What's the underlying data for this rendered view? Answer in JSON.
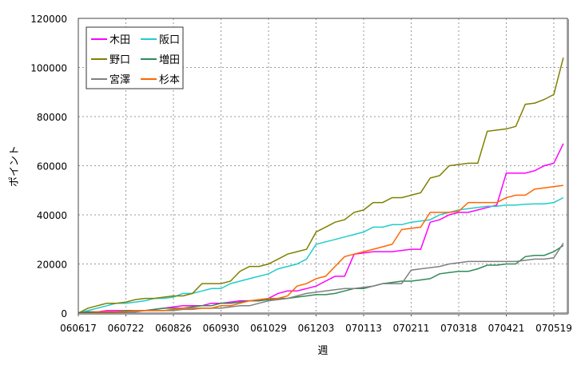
{
  "chart_data": {
    "type": "line",
    "title": "",
    "xlabel": "週",
    "ylabel": "ポイント",
    "ylim": [
      0,
      120000
    ],
    "yticks": [
      0,
      20000,
      40000,
      60000,
      80000,
      100000,
      120000
    ],
    "x_tick_labels": [
      "060617",
      "060722",
      "060826",
      "060930",
      "061029",
      "061203",
      "070113",
      "070211",
      "070318",
      "070421",
      "070519"
    ],
    "x_tick_every": 5,
    "grid": true,
    "legend_position": "top-left",
    "series": [
      {
        "name": "木田",
        "color": "#ff00ff",
        "values": [
          0,
          500,
          500,
          1000,
          1000,
          1000,
          1000,
          1000,
          1500,
          2000,
          2500,
          3000,
          3000,
          3000,
          4000,
          4000,
          4500,
          5000,
          5000,
          5000,
          6000,
          8000,
          9000,
          9000,
          10000,
          11000,
          13000,
          15000,
          15000,
          24000,
          24500,
          25000,
          25000,
          25000,
          25500,
          26000,
          26000,
          37000,
          38000,
          40000,
          41000,
          41000,
          42000,
          43000,
          44000,
          57000,
          57000,
          57000,
          58000,
          60000,
          61000,
          69000
        ]
      },
      {
        "name": "阪口",
        "color": "#22cccc",
        "values": [
          0,
          1000,
          2000,
          3000,
          4000,
          4000,
          4500,
          5000,
          6000,
          6000,
          6500,
          8000,
          8000,
          9000,
          10000,
          10000,
          12000,
          13000,
          14000,
          15000,
          16000,
          18000,
          19000,
          20000,
          22000,
          28000,
          29000,
          30000,
          31000,
          32000,
          33000,
          35000,
          35000,
          36000,
          36000,
          37000,
          37500,
          38000,
          40000,
          41000,
          42000,
          42500,
          43000,
          43500,
          43500,
          44000,
          44000,
          44300,
          44500,
          44500,
          45000,
          47000
        ]
      },
      {
        "name": "野口",
        "color": "#808000",
        "values": [
          0,
          2000,
          3000,
          4000,
          4000,
          4500,
          5500,
          6000,
          6000,
          6500,
          7000,
          7000,
          8000,
          12000,
          12000,
          12000,
          13000,
          17000,
          19000,
          19000,
          20000,
          22000,
          24000,
          25000,
          26000,
          33000,
          35000,
          37000,
          38000,
          41000,
          42000,
          45000,
          45000,
          47000,
          47000,
          48000,
          49000,
          55000,
          56000,
          60000,
          60500,
          61000,
          61000,
          74000,
          74500,
          75000,
          76000,
          85000,
          85500,
          87000,
          89000,
          104000
        ]
      },
      {
        "name": "増田",
        "color": "#2e8b57",
        "values": [
          0,
          500,
          500,
          500,
          500,
          1000,
          1000,
          1000,
          1500,
          2000,
          2000,
          2000,
          2500,
          3000,
          3000,
          4000,
          4000,
          4500,
          5000,
          5000,
          5500,
          6000,
          6000,
          6500,
          7000,
          7500,
          7500,
          8000,
          9000,
          10000,
          10000,
          11000,
          12000,
          12500,
          13000,
          13000,
          13500,
          14000,
          16000,
          16500,
          17000,
          17000,
          18000,
          19500,
          19500,
          20000,
          20000,
          23000,
          23500,
          23500,
          25000,
          27500
        ]
      },
      {
        "name": "宮澤",
        "color": "#808080",
        "values": [
          0,
          0,
          0,
          500,
          500,
          500,
          500,
          1000,
          1000,
          1000,
          1000,
          1500,
          1500,
          2000,
          2000,
          2000,
          2500,
          3000,
          3000,
          4000,
          5000,
          5500,
          6000,
          7000,
          8000,
          8500,
          9000,
          9500,
          10000,
          10000,
          10500,
          11000,
          12000,
          12000,
          12000,
          17500,
          18000,
          18500,
          19000,
          20000,
          20500,
          21000,
          21000,
          21000,
          21000,
          21000,
          21000,
          21500,
          22000,
          22000,
          22500,
          28500
        ]
      },
      {
        "name": "杉本",
        "color": "#ff6600",
        "values": [
          0,
          0,
          500,
          500,
          500,
          500,
          1000,
          1000,
          1000,
          1000,
          1500,
          2000,
          2000,
          2000,
          2000,
          3000,
          3000,
          4000,
          5000,
          5500,
          6000,
          6000,
          7000,
          11000,
          12000,
          14000,
          15000,
          19000,
          23000,
          24000,
          25000,
          26000,
          27000,
          28000,
          34000,
          34500,
          35000,
          41000,
          41000,
          41000,
          41500,
          45000,
          45000,
          45000,
          45000,
          47000,
          48000,
          48000,
          50500,
          51000,
          51500,
          52000
        ]
      }
    ]
  }
}
